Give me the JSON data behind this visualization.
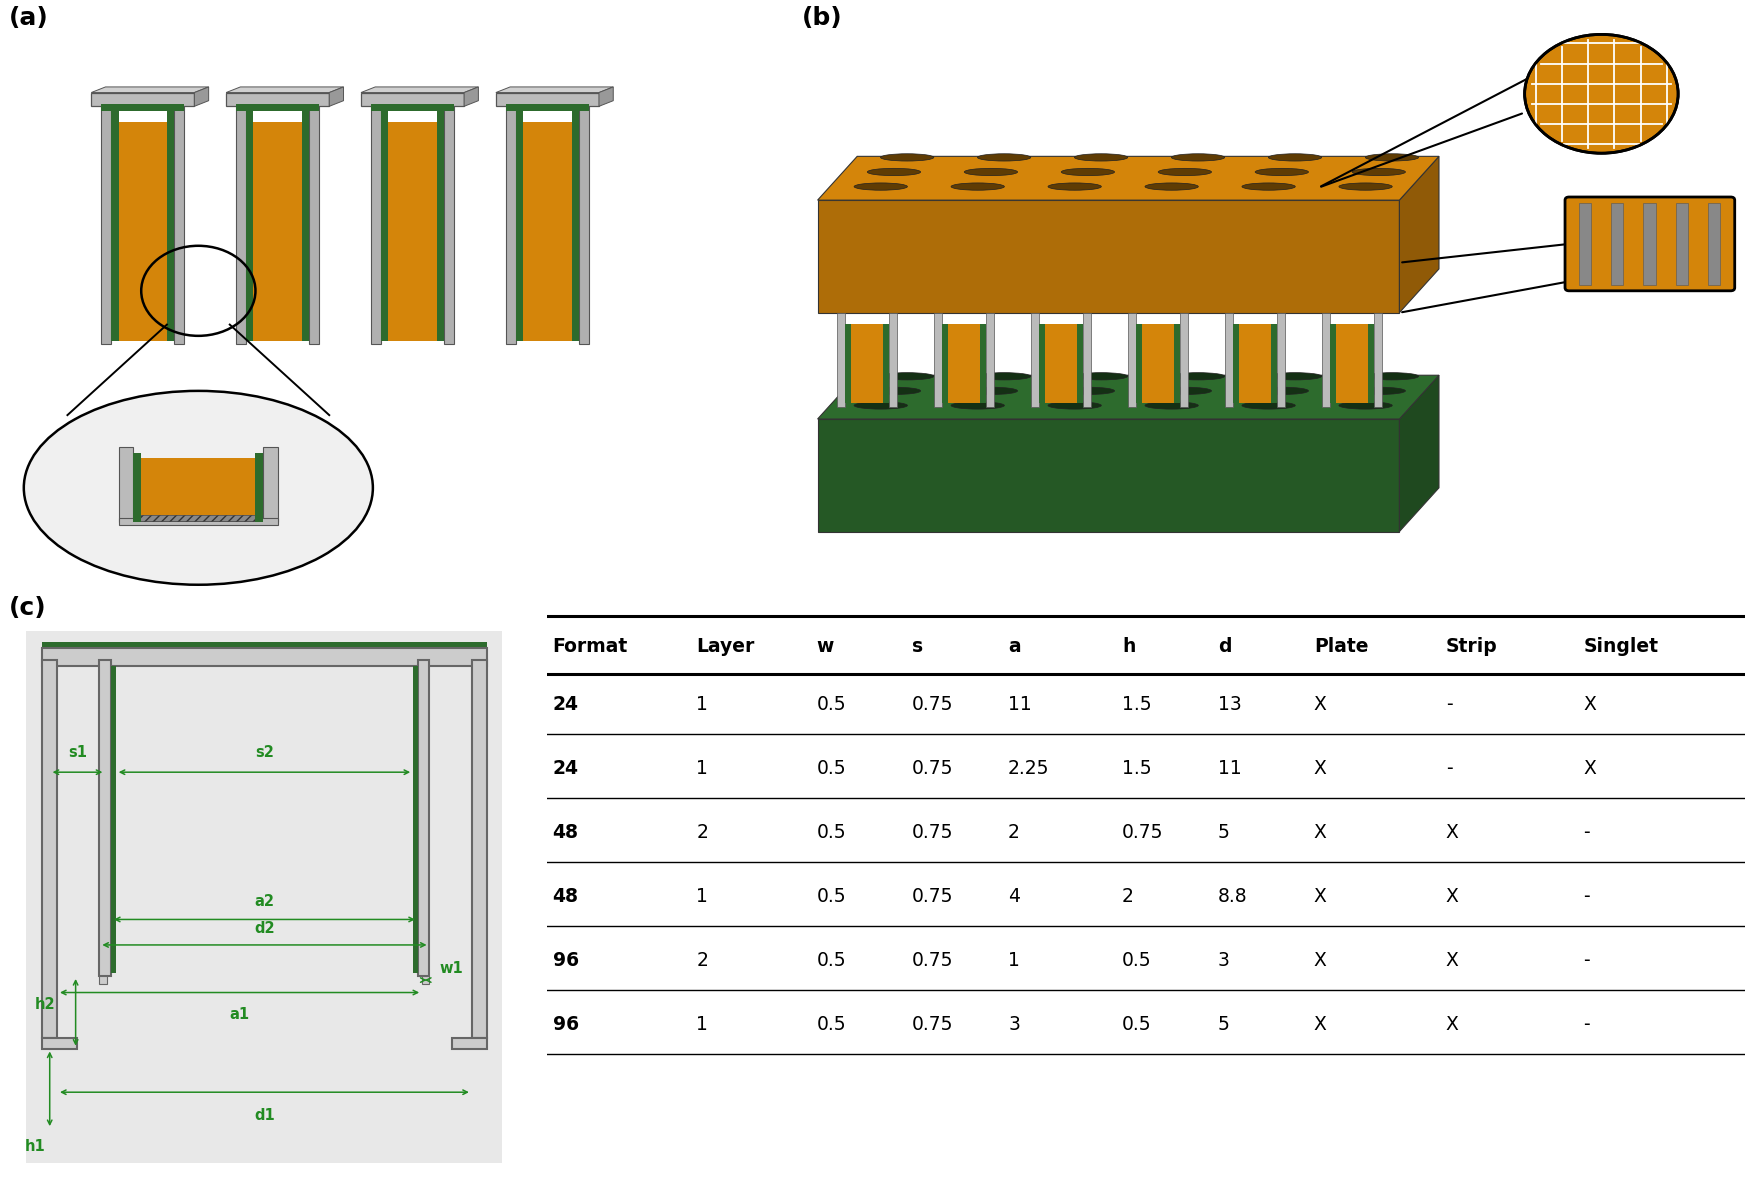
{
  "panel_labels": [
    "(a)",
    "(b)",
    "(c)"
  ],
  "label_fontsize": 18,
  "label_fontweight": "bold",
  "table_headers": [
    "Format",
    "Layer",
    "w",
    "s",
    "a",
    "h",
    "d",
    "Plate",
    "Strip",
    "Singlet"
  ],
  "table_rows": [
    [
      "24",
      "1",
      "0.5",
      "0.75",
      "11",
      "1.5",
      "13",
      "X",
      "-",
      "X"
    ],
    [
      "24",
      "1",
      "0.5",
      "0.75",
      "2.25",
      "1.5",
      "11",
      "X",
      "-",
      "X"
    ],
    [
      "48",
      "2",
      "0.5",
      "0.75",
      "2",
      "0.75",
      "5",
      "X",
      "X",
      "-"
    ],
    [
      "48",
      "1",
      "0.5",
      "0.75",
      "4",
      "2",
      "8.8",
      "X",
      "X",
      "-"
    ],
    [
      "96",
      "2",
      "0.5",
      "0.75",
      "1",
      "0.5",
      "3",
      "X",
      "X",
      "-"
    ],
    [
      "96",
      "1",
      "0.5",
      "0.75",
      "3",
      "0.5",
      "5",
      "X",
      "X",
      "-"
    ]
  ],
  "dim_color": "#228B22",
  "bg_color": "#ffffff",
  "orange": "#D4850A",
  "green": "#2D6B2D",
  "lgray": "#AAAAAA",
  "dgray": "#555555",
  "wall_color": "#666666",
  "drawing_bg": "#e0e0e0"
}
